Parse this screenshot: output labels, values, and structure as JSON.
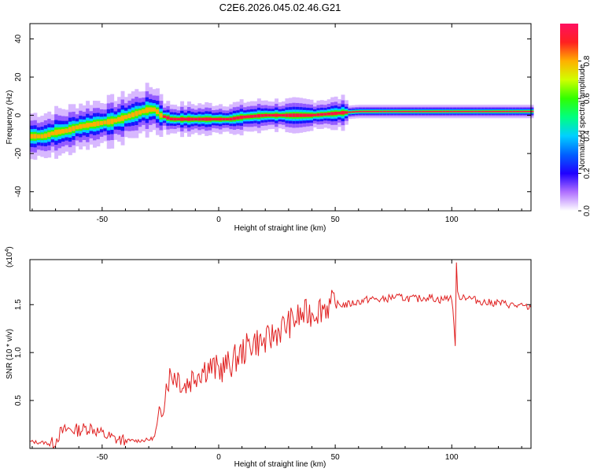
{
  "title": "C2E6.2026.045.02.46.G21",
  "colorbar": {
    "label": "Normalized spectral amplitude",
    "ticks": [
      "0.0",
      "0.2",
      "0.4",
      "0.6",
      "0.8"
    ],
    "tick_values": [
      0.0,
      0.2,
      0.4,
      0.6,
      0.8
    ],
    "range": [
      0,
      1
    ],
    "colormap": [
      "#ffffff",
      "#b070ff",
      "#2000ff",
      "#0060ff",
      "#00d0ff",
      "#00ff80",
      "#30ff00",
      "#d0ff00",
      "#ffb000",
      "#ff2020",
      "#ff1060"
    ]
  },
  "chart_data": [
    {
      "type": "heatmap",
      "xlabel": "Height of straight line (km)",
      "ylabel": "Frequency (Hz)",
      "xlim": [
        -81,
        134
      ],
      "ylim": [
        -50,
        48
      ],
      "x_ticks": [
        -50,
        0,
        50,
        100
      ],
      "y_ticks": [
        -40,
        -20,
        0,
        20,
        40
      ],
      "ridge": {
        "x": [
          -81,
          -75,
          -70,
          -65,
          -60,
          -55,
          -50,
          -45,
          -40,
          -35,
          -30,
          -27,
          -25,
          -20,
          -10,
          0,
          5,
          10,
          20,
          30,
          40,
          50,
          60,
          80,
          100,
          120,
          134
        ],
        "freq": [
          -11,
          -11,
          -9,
          -8,
          -6,
          -5,
          -4,
          -3,
          -1,
          1,
          3,
          3,
          0,
          -2,
          -2,
          -2,
          -2,
          -1,
          0,
          0,
          0,
          1,
          2,
          2,
          2,
          2,
          2
        ]
      }
    },
    {
      "type": "line",
      "xlabel": "Height of straight line (km)",
      "ylabel": "SNR (10 * v/v)",
      "y_multiplier": "(x10",
      "y_multiplier_exp": "4",
      "y_multiplier_close": ")",
      "xlim": [
        -81,
        134
      ],
      "ylim": [
        0,
        1.97
      ],
      "x_ticks": [
        -50,
        0,
        50,
        100
      ],
      "y_ticks": [
        0.5,
        1.0,
        1.5
      ],
      "y_tick_labels": [
        "0.5",
        "1.0",
        "1.5"
      ],
      "color": "#e02020",
      "x": [
        -81,
        -75,
        -71,
        -68,
        -65,
        -60,
        -55,
        -50,
        -45,
        -40,
        -35,
        -30,
        -27,
        -25,
        -22,
        -20,
        -17,
        -15,
        -12,
        -10,
        -5,
        0,
        5,
        10,
        15,
        20,
        25,
        30,
        35,
        40,
        45,
        50,
        55,
        60,
        65,
        70,
        75,
        80,
        85,
        90,
        95,
        100,
        101.5,
        102,
        102.5,
        103,
        105,
        110,
        115,
        120,
        125,
        130,
        134
      ],
      "y": [
        0.07,
        0.06,
        0.05,
        0.16,
        0.2,
        0.19,
        0.22,
        0.15,
        0.1,
        0.08,
        0.08,
        0.09,
        0.12,
        0.35,
        0.72,
        0.78,
        0.75,
        0.65,
        0.72,
        0.78,
        0.85,
        0.82,
        0.88,
        1.0,
        1.12,
        1.1,
        1.22,
        1.3,
        1.38,
        1.42,
        1.48,
        1.5,
        1.5,
        1.53,
        1.56,
        1.55,
        1.58,
        1.57,
        1.56,
        1.58,
        1.55,
        1.58,
        1.1,
        1.95,
        1.6,
        1.58,
        1.59,
        1.55,
        1.52,
        1.52,
        1.5,
        1.48,
        1.47
      ]
    }
  ]
}
